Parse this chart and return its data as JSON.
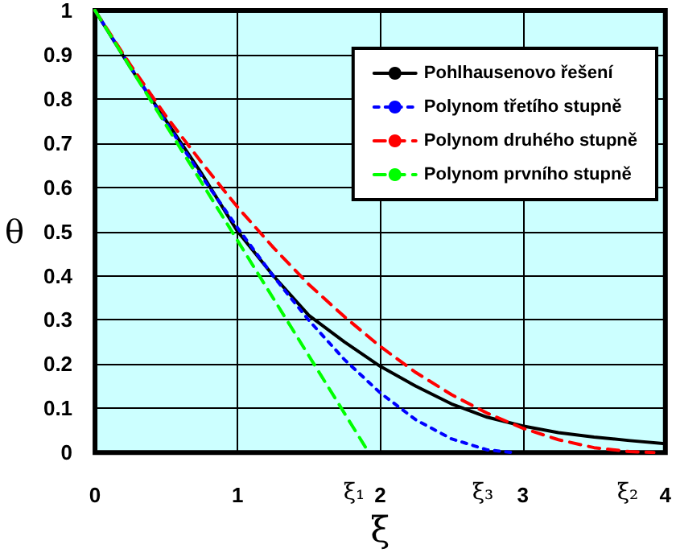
{
  "chart_data": {
    "type": "line",
    "xlabel": "ξ",
    "ylabel": "θ",
    "xlim": [
      0,
      4
    ],
    "xticks": [
      0,
      1,
      2,
      3,
      4
    ],
    "ylim": [
      0,
      1
    ],
    "yticks": [
      0,
      0.1,
      0.2,
      0.3,
      0.4,
      0.5,
      0.6,
      0.7,
      0.8,
      0.9,
      1
    ],
    "grid": true,
    "legend": "top right",
    "marker": "none",
    "series": [
      {
        "name": "Pohlhausenovo řešení",
        "color": "#000000",
        "line_style": "solid",
        "x": [
          0,
          0.25,
          0.5,
          0.75,
          1,
          1.25,
          1.5,
          1.75,
          2,
          2.25,
          2.5,
          2.75,
          3,
          3.25,
          3.5,
          3.75,
          4
        ],
        "values": [
          1,
          0.87,
          0.75,
          0.63,
          0.5,
          0.4,
          0.31,
          0.25,
          0.195,
          0.15,
          0.11,
          0.08,
          0.06,
          0.045,
          0.035,
          0.027,
          0.02
        ]
      },
      {
        "name": "Polynom třetího stupně",
        "color": "#0000ff",
        "line_style": "dotted",
        "x": [
          0,
          0.25,
          0.5,
          0.75,
          1,
          1.25,
          1.5,
          1.75,
          2,
          2.25,
          2.5,
          2.75,
          2.93
        ],
        "values": [
          1,
          0.872,
          0.746,
          0.624,
          0.508,
          0.399,
          0.299,
          0.21,
          0.135,
          0.074,
          0.031,
          0.006,
          0
        ]
      },
      {
        "name": "Polynom druhého stupně",
        "color": "#ff0000",
        "line_style": "dashed",
        "x": [
          0,
          0.25,
          0.5,
          0.75,
          1,
          1.25,
          1.5,
          1.75,
          2,
          2.25,
          2.5,
          2.75,
          3,
          3.25,
          3.5,
          3.75,
          3.92
        ],
        "values": [
          1,
          0.876,
          0.76,
          0.655,
          0.555,
          0.464,
          0.38,
          0.307,
          0.24,
          0.181,
          0.131,
          0.089,
          0.055,
          0.029,
          0.011,
          0.002,
          0
        ]
      },
      {
        "name": "Polynom prvního stupně",
        "color": "#00ff00",
        "line_style": "dashed",
        "x": [
          0,
          1.92
        ],
        "values": [
          1,
          0
        ]
      }
    ],
    "annotations": [
      "ξ₁",
      "ξ₃",
      "ξ₂"
    ]
  }
}
